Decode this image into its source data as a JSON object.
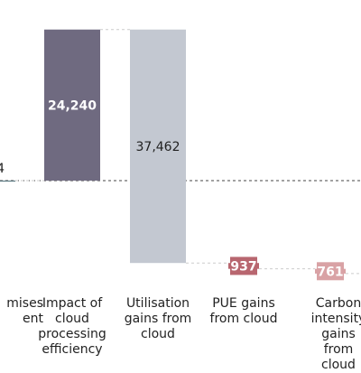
{
  "chart_data": {
    "type": "waterfall",
    "title": "",
    "xlabel": "",
    "ylabel": "",
    "categories": [
      "mises\nent",
      "Impact of\ncloud\nprocessing\nefficiency",
      "Utilisation\ngains from\ncloud",
      "PUE gains\nfrom cloud",
      "Carbon\nintensity\ngains from\ncloud"
    ],
    "bars": [
      {
        "category_index": 0,
        "start": 0,
        "end": 4,
        "label": "4"
      },
      {
        "category_index": 1,
        "start": 4,
        "end": 24244,
        "label": "24,240"
      },
      {
        "category_index": 2,
        "start": 24244,
        "end": -13218,
        "label": "37,462"
      },
      {
        "category_index": 3,
        "start": -13218,
        "end": -14155,
        "label": "937"
      },
      {
        "category_index": 4,
        "start": -14155,
        "end": -14916,
        "label": "761"
      }
    ],
    "colors": {
      "base_bar": "#4d6f78",
      "increase_bar": "#6f6a80",
      "utilisation_bar": "#c3c8d1",
      "pue_bar": "#b8666f",
      "carbon_bar": "#d9a2a5",
      "connector": "#555555",
      "grid_line": "#cccccc",
      "baseline": "#444444"
    }
  }
}
